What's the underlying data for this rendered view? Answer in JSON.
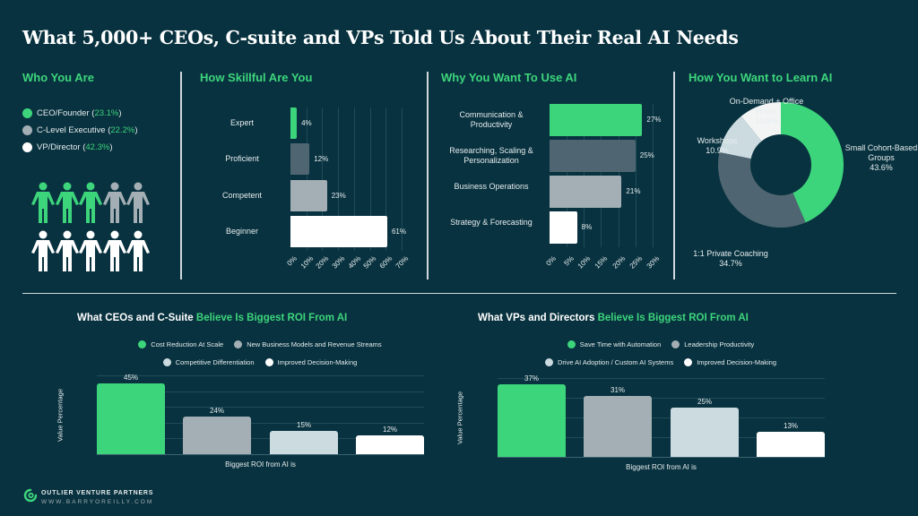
{
  "title": "What 5,000+ CEOs, C-suite and VPs Told Us About Their Real AI Needs",
  "colors": {
    "background": "#08323f",
    "accent": "#3dd57c",
    "slate": "#4f6672",
    "grey": "#a3afb4",
    "light": "#cbdbe0",
    "white": "#ffffff"
  },
  "who": {
    "title": "Who You Are",
    "items": [
      {
        "label": "CEO/Founder",
        "pct": "23.1%",
        "color": "#3dd57c"
      },
      {
        "label": "C-Level Executive",
        "pct": "22.2%",
        "color": "#a3afb4"
      },
      {
        "label": "VP/Director",
        "pct": "42.3%",
        "color": "#ffffff"
      }
    ],
    "people_icons": [
      "green",
      "green",
      "green",
      "grey",
      "grey",
      "white",
      "white",
      "white",
      "white",
      "white"
    ]
  },
  "chart_data": [
    {
      "type": "bar",
      "orientation": "horizontal",
      "title": "How Skillful Are You",
      "categories": [
        "Expert",
        "Proficient",
        "Competent",
        "Beginner"
      ],
      "values": [
        4,
        12,
        23,
        61
      ],
      "labels": [
        "4%",
        "12%",
        "23%",
        "61%"
      ],
      "colors": [
        "#3dd57c",
        "#4f6672",
        "#a3afb4",
        "#ffffff"
      ],
      "xlim": [
        0,
        70
      ],
      "xticks": [
        "0%",
        "10%",
        "20%",
        "30%",
        "40%",
        "50%",
        "60%",
        "70%"
      ],
      "grid": true
    },
    {
      "type": "bar",
      "orientation": "horizontal",
      "title": "Why You Want To Use AI",
      "categories": [
        "Communication & Productivity",
        "Researching, Scaling & Personalization",
        "Business Operations",
        "Strategy & Forecasting"
      ],
      "values": [
        27,
        25,
        21,
        8
      ],
      "labels": [
        "27%",
        "25%",
        "21%",
        "8%"
      ],
      "colors": [
        "#3dd57c",
        "#4f6672",
        "#a3afb4",
        "#ffffff"
      ],
      "xlim": [
        0,
        30
      ],
      "xticks": [
        "0%",
        "5%",
        "10%",
        "15%",
        "20%",
        "25%",
        "30%"
      ],
      "grid": true
    },
    {
      "type": "pie",
      "donut": true,
      "title": "How You Want to Learn AI",
      "categories": [
        "Small Cohort-Based Groups",
        "1:1 Private Coaching",
        "Workshops",
        "On-Demand + Office Hours"
      ],
      "values": [
        43.6,
        34.7,
        10.9,
        10.9
      ],
      "labels": [
        "43.6%",
        "34.7%",
        "10.9%",
        "10.9%"
      ],
      "colors": [
        "#3dd57c",
        "#4f6672",
        "#cbdbe0",
        "#f3f5f5"
      ]
    },
    {
      "type": "bar",
      "title_main": "What CEOs and C-Suite",
      "title_accent": "Believe Is Biggest ROI From AI",
      "categories": [
        "Cost Reduction At Scale",
        "New Business Models and Revenue Streams",
        "Competitive Differentiation",
        "Improved Decision-Making"
      ],
      "values": [
        45,
        24,
        15,
        12
      ],
      "labels": [
        "45%",
        "24%",
        "15%",
        "12%"
      ],
      "colors": [
        "#3dd57c",
        "#a3afb4",
        "#cbdbe0",
        "#ffffff"
      ],
      "xlabel": "Biggest ROI from AI is",
      "ylabel": "Value Percentage",
      "ylim": [
        0,
        50
      ],
      "legend": "top",
      "grid": true
    },
    {
      "type": "bar",
      "title_main": "What VPs and Directors",
      "title_accent": "Believe Is Biggest ROI From AI",
      "categories": [
        "Save Time with Automation",
        "Leadership Productivity",
        "Drive AI Adoption / Custom AI Systems",
        "Improved Decision-Making"
      ],
      "values": [
        37,
        31,
        25,
        13
      ],
      "labels": [
        "37%",
        "31%",
        "25%",
        "13%"
      ],
      "colors": [
        "#3dd57c",
        "#a3afb4",
        "#cbdbe0",
        "#ffffff"
      ],
      "xlabel": "Biggest ROI from AI is",
      "ylabel": "Value Percentage",
      "ylim": [
        0,
        40
      ],
      "legend": "top",
      "grid": true
    }
  ],
  "footer": {
    "brand": "OUTLIER VENTURE PARTNERS",
    "url": "WWW.BARRYOREILLY.COM",
    "logo_icon": "swirl-logo"
  }
}
